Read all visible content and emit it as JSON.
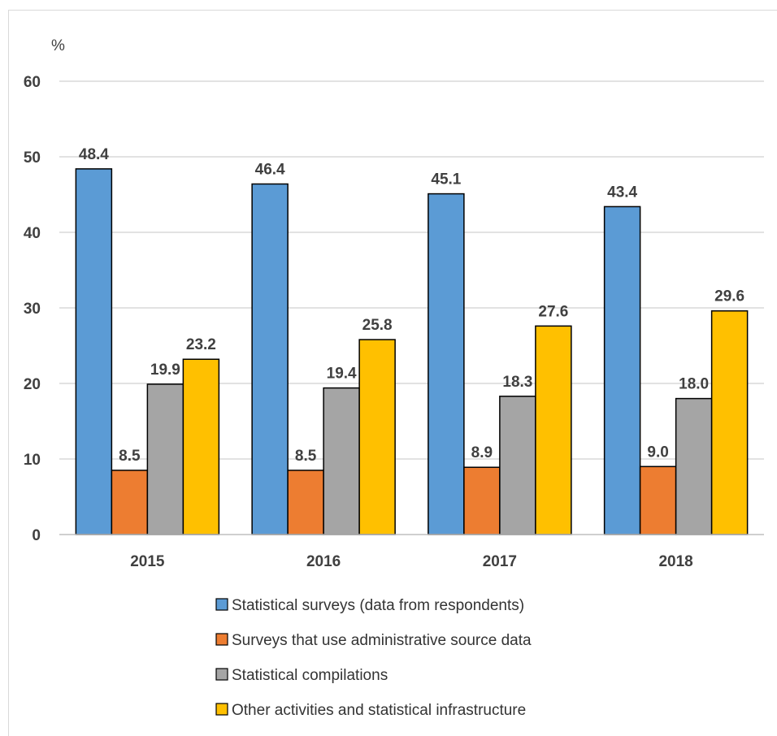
{
  "chart_data": {
    "type": "bar",
    "unit_label": "%",
    "categories": [
      "2015",
      "2016",
      "2017",
      "2018"
    ],
    "ylim": [
      0,
      60
    ],
    "yticks": [
      0,
      10,
      20,
      30,
      40,
      50,
      60
    ],
    "grid": true,
    "legend_position": "bottom",
    "series": [
      {
        "name": "Statistical surveys (data from respondents)",
        "color": "#5b9bd5",
        "values": [
          48.4,
          46.4,
          45.1,
          43.4
        ],
        "labels": [
          "48.4",
          "46.4",
          "45.1",
          "43.4"
        ]
      },
      {
        "name": "Surveys that use administrative source data",
        "color": "#ed7d31",
        "values": [
          8.5,
          8.5,
          8.9,
          9.0
        ],
        "labels": [
          "8.5",
          "8.5",
          "8.9",
          "9.0"
        ]
      },
      {
        "name": "Statistical compilations",
        "color": "#a5a5a5",
        "values": [
          19.9,
          19.4,
          18.3,
          18.0
        ],
        "labels": [
          "19.9",
          "19.4",
          "18.3",
          "18.0"
        ]
      },
      {
        "name": "Other activities and statistical infrastructure",
        "color": "#ffc000",
        "values": [
          23.2,
          25.8,
          27.6,
          29.6
        ],
        "labels": [
          "23.2",
          "25.8",
          "27.6",
          "29.6"
        ]
      }
    ]
  }
}
